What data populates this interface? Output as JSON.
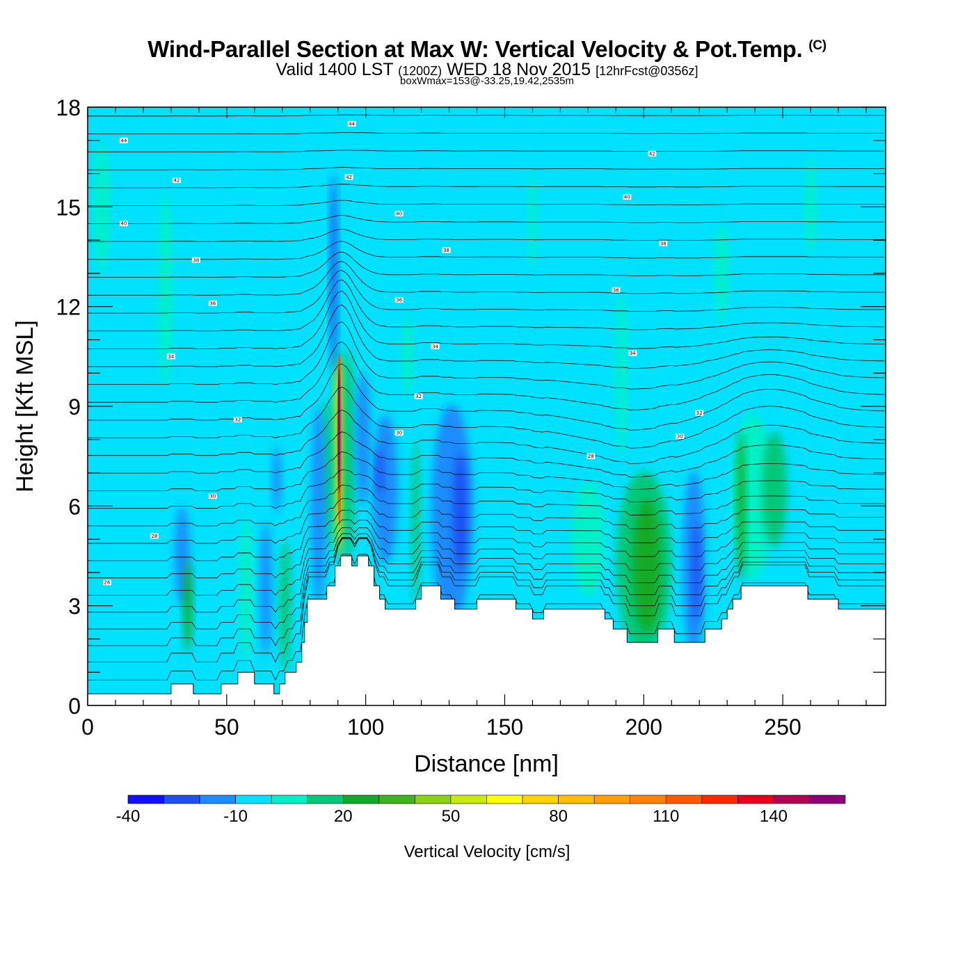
{
  "header": {
    "title": "Wind-Parallel Section at Max W: Vertical Velocity & Pot.Temp.",
    "copyright": "(C)",
    "valid_prefix": "Valid 1400 LST",
    "valid_utc": "(1200Z)",
    "valid_date": "WED 18 Nov 2015",
    "forecast": "[12hrFcst@0356z]",
    "box_wmax": "boxWmax=153@-33.25,19.42,2535m"
  },
  "chart_data": {
    "type": "heatmap",
    "title": "Wind-Parallel Section at Max W: Vertical Velocity & Pot.Temp.",
    "xlabel": "Distance [nm]",
    "ylabel": "Height [Kft MSL]",
    "xlim": [
      0,
      287
    ],
    "ylim": [
      0,
      18
    ],
    "xticks": [
      0,
      50,
      100,
      150,
      200,
      250
    ],
    "yticks": [
      0,
      3,
      6,
      9,
      12,
      15,
      18
    ],
    "background_value_cms": -5,
    "colorbar": {
      "label": "Vertical Velocity [cm/s]",
      "boundaries": [
        -40,
        -30,
        -20,
        -10,
        0,
        10,
        20,
        30,
        40,
        50,
        60,
        70,
        80,
        90,
        100,
        110,
        120,
        130,
        140,
        150,
        160
      ],
      "tick_labels": [
        "-40",
        "-10",
        "20",
        "50",
        "80",
        "110",
        "140"
      ],
      "colors": [
        "#1010ff",
        "#1e50f0",
        "#1e8cff",
        "#00e0ff",
        "#00f0c8",
        "#00c878",
        "#14aa28",
        "#3cb41e",
        "#8cd214",
        "#c8eb0a",
        "#ffff00",
        "#ffd200",
        "#ffbe00",
        "#ffa000",
        "#ff8200",
        "#ff5a00",
        "#ff2800",
        "#e6001e",
        "#b40050",
        "#8c0078"
      ]
    },
    "max_w": {
      "value_cms": 153,
      "lat": -33.25,
      "lon": 19.42,
      "height_m": 2535
    },
    "velocity_cells": [
      {
        "x": 90.5,
        "y": 7.5,
        "w": 4,
        "h": 6.4,
        "v": 30
      },
      {
        "x": 90.5,
        "y": 7.5,
        "w": 2.8,
        "h": 5.8,
        "v": 60
      },
      {
        "x": 90.5,
        "y": 8.0,
        "w": 1.6,
        "h": 5.2,
        "v": 110
      },
      {
        "x": 90.4,
        "y": 8.3,
        "w": 0.9,
        "h": 3.8,
        "v": 153
      },
      {
        "x": 86,
        "y": 7.0,
        "w": 4,
        "h": 4.5,
        "v": 15
      },
      {
        "x": 94,
        "y": 7.5,
        "w": 4,
        "h": 6.5,
        "v": 15
      },
      {
        "x": 88.5,
        "y": 13.0,
        "w": 2.5,
        "h": 6.0,
        "v": -25
      },
      {
        "x": 83,
        "y": 6.0,
        "w": 5,
        "h": 6.0,
        "v": -15
      },
      {
        "x": 99,
        "y": 8.0,
        "w": 5,
        "h": 4.0,
        "v": -15
      },
      {
        "x": 107,
        "y": 6.5,
        "w": 9,
        "h": 4.5,
        "v": -15
      },
      {
        "x": 105,
        "y": 7.0,
        "w": 2.5,
        "h": 1.5,
        "v": -25
      },
      {
        "x": 118,
        "y": 5.5,
        "w": 3,
        "h": 5.0,
        "v": 15
      },
      {
        "x": 131,
        "y": 5.8,
        "w": 15,
        "h": 6.5,
        "v": -15
      },
      {
        "x": 134,
        "y": 5.8,
        "w": 5,
        "h": 3.6,
        "v": -25
      },
      {
        "x": 115,
        "y": 10.5,
        "w": 4,
        "h": 2.5,
        "v": 5
      },
      {
        "x": 200,
        "y": 4.3,
        "w": 20,
        "h": 5.5,
        "v": 15
      },
      {
        "x": 201,
        "y": 4.2,
        "w": 10,
        "h": 4.0,
        "v": 25
      },
      {
        "x": 218,
        "y": 4.3,
        "w": 8,
        "h": 5.5,
        "v": -15
      },
      {
        "x": 219,
        "y": 4.0,
        "w": 3,
        "h": 3.0,
        "v": -30
      },
      {
        "x": 239,
        "y": 6.3,
        "w": 15,
        "h": 5.0,
        "v": 5
      },
      {
        "x": 247,
        "y": 6.5,
        "w": 9,
        "h": 3.5,
        "v": 15
      },
      {
        "x": 235,
        "y": 6.0,
        "w": 3,
        "h": 4.5,
        "v": 25
      },
      {
        "x": 180,
        "y": 5.0,
        "w": 12,
        "h": 3.5,
        "v": 5
      },
      {
        "x": 34,
        "y": 4.5,
        "w": 5,
        "h": 3.0,
        "v": -20
      },
      {
        "x": 36,
        "y": 3.0,
        "w": 3,
        "h": 2.8,
        "v": 25
      },
      {
        "x": 57,
        "y": 3.5,
        "w": 5,
        "h": 4.5,
        "v": 5
      },
      {
        "x": 64,
        "y": 3.5,
        "w": 4,
        "h": 4.0,
        "v": -15
      },
      {
        "x": 71,
        "y": 3.0,
        "w": 4,
        "h": 4.0,
        "v": 15
      },
      {
        "x": 68,
        "y": 6.8,
        "w": 3,
        "h": 2.0,
        "v": -15
      },
      {
        "x": 160,
        "y": 14.6,
        "w": 3,
        "h": 3.0,
        "v": 5
      },
      {
        "x": 5,
        "y": 15.0,
        "w": 6,
        "h": 4.0,
        "v": 5
      },
      {
        "x": 28,
        "y": 12.5,
        "w": 5,
        "h": 6.0,
        "v": 5
      },
      {
        "x": 228,
        "y": 13.0,
        "w": 5,
        "h": 3.0,
        "v": 5
      },
      {
        "x": 260,
        "y": 15.0,
        "w": 4,
        "h": 3.0,
        "v": 5
      },
      {
        "x": 192,
        "y": 10.0,
        "w": 4,
        "h": 5.0,
        "v": 5
      }
    ],
    "terrain_profile": [
      [
        0,
        0.35
      ],
      [
        30,
        0.35
      ],
      [
        30,
        0.65
      ],
      [
        38,
        0.65
      ],
      [
        38,
        0.35
      ],
      [
        48,
        0.35
      ],
      [
        48,
        0.65
      ],
      [
        54,
        0.65
      ],
      [
        54,
        1.0
      ],
      [
        60,
        1.0
      ],
      [
        60,
        0.65
      ],
      [
        67,
        0.65
      ],
      [
        67,
        0.35
      ],
      [
        69,
        0.35
      ],
      [
        69,
        0.65
      ],
      [
        71,
        0.65
      ],
      [
        71,
        1.0
      ],
      [
        75,
        1.0
      ],
      [
        75,
        1.3
      ],
      [
        77,
        1.3
      ],
      [
        77,
        1.9
      ],
      [
        78,
        1.9
      ],
      [
        78,
        2.5
      ],
      [
        79,
        2.5
      ],
      [
        79,
        3.2
      ],
      [
        86,
        3.2
      ],
      [
        86,
        3.6
      ],
      [
        89,
        3.6
      ],
      [
        89,
        4.2
      ],
      [
        91,
        4.2
      ],
      [
        91,
        4.5
      ],
      [
        95,
        4.5
      ],
      [
        95,
        4.2
      ],
      [
        97,
        4.2
      ],
      [
        97,
        4.5
      ],
      [
        101,
        4.5
      ],
      [
        101,
        4.2
      ],
      [
        103,
        4.2
      ],
      [
        103,
        3.6
      ],
      [
        105,
        3.6
      ],
      [
        105,
        3.2
      ],
      [
        107,
        3.2
      ],
      [
        107,
        2.9
      ],
      [
        118,
        2.9
      ],
      [
        118,
        3.2
      ],
      [
        120,
        3.2
      ],
      [
        120,
        3.6
      ],
      [
        127,
        3.6
      ],
      [
        127,
        3.2
      ],
      [
        132,
        3.2
      ],
      [
        132,
        2.9
      ],
      [
        140,
        2.9
      ],
      [
        140,
        3.2
      ],
      [
        154,
        3.2
      ],
      [
        154,
        2.9
      ],
      [
        160,
        2.9
      ],
      [
        160,
        2.6
      ],
      [
        164,
        2.6
      ],
      [
        164,
        2.9
      ],
      [
        186,
        2.9
      ],
      [
        186,
        2.6
      ],
      [
        189,
        2.6
      ],
      [
        189,
        2.3
      ],
      [
        194,
        2.3
      ],
      [
        194,
        1.9
      ],
      [
        205,
        1.9
      ],
      [
        205,
        2.3
      ],
      [
        211,
        2.3
      ],
      [
        211,
        1.9
      ],
      [
        222,
        1.9
      ],
      [
        222,
        2.3
      ],
      [
        228,
        2.3
      ],
      [
        228,
        2.6
      ],
      [
        230,
        2.6
      ],
      [
        230,
        2.9
      ],
      [
        232,
        2.9
      ],
      [
        232,
        3.2
      ],
      [
        235,
        3.2
      ],
      [
        235,
        3.6
      ],
      [
        259,
        3.6
      ],
      [
        259,
        3.2
      ],
      [
        270,
        3.2
      ],
      [
        270,
        2.9
      ],
      [
        287,
        2.9
      ]
    ],
    "theta_contours": {
      "interval_c": 1,
      "labels": [
        {
          "text": "44",
          "x": 13,
          "y": 17.0
        },
        {
          "text": "44",
          "x": 95,
          "y": 17.5
        },
        {
          "text": "42",
          "x": 32,
          "y": 15.8
        },
        {
          "text": "42",
          "x": 94,
          "y": 15.9
        },
        {
          "text": "42",
          "x": 203,
          "y": 16.6
        },
        {
          "text": "40",
          "x": 13,
          "y": 14.5
        },
        {
          "text": "40",
          "x": 112,
          "y": 14.8
        },
        {
          "text": "40",
          "x": 194,
          "y": 15.3
        },
        {
          "text": "38",
          "x": 39,
          "y": 13.4
        },
        {
          "text": "38",
          "x": 129,
          "y": 13.7
        },
        {
          "text": "38",
          "x": 207,
          "y": 13.9
        },
        {
          "text": "36",
          "x": 45,
          "y": 12.1
        },
        {
          "text": "36",
          "x": 112,
          "y": 12.2
        },
        {
          "text": "36",
          "x": 190,
          "y": 12.5
        },
        {
          "text": "34",
          "x": 30,
          "y": 10.5
        },
        {
          "text": "34",
          "x": 125,
          "y": 10.8
        },
        {
          "text": "34",
          "x": 196,
          "y": 10.6
        },
        {
          "text": "32",
          "x": 54,
          "y": 8.6
        },
        {
          "text": "32",
          "x": 119,
          "y": 9.3
        },
        {
          "text": "32",
          "x": 220,
          "y": 8.8
        },
        {
          "text": "30",
          "x": 45,
          "y": 6.3
        },
        {
          "text": "30",
          "x": 112,
          "y": 8.2
        },
        {
          "text": "30",
          "x": 213,
          "y": 8.1
        },
        {
          "text": "28",
          "x": 24,
          "y": 5.1
        },
        {
          "text": "28",
          "x": 181,
          "y": 7.5
        },
        {
          "text": "26",
          "x": 7,
          "y": 3.7
        }
      ]
    }
  }
}
